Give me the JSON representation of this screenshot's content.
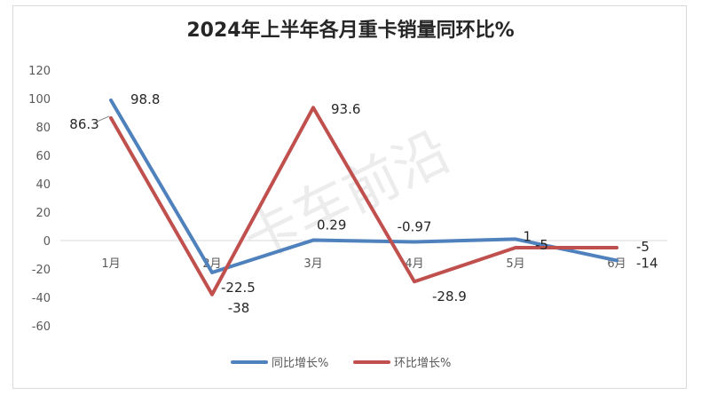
{
  "chart_data": {
    "type": "line",
    "title": "2024年上半年各月重卡销量同环比%",
    "categories": [
      "1月",
      "2月",
      "3月",
      "4月",
      "5月",
      "6月"
    ],
    "ylim": [
      -60,
      120
    ],
    "yticks": [
      -60,
      -40,
      -20,
      0,
      20,
      40,
      60,
      80,
      100,
      120
    ],
    "grid": false,
    "legend_position": "bottom",
    "series": [
      {
        "name": "同比增长%",
        "color": "#4f81bd",
        "values": [
          98.8,
          -22.5,
          0.29,
          -0.97,
          1,
          -14
        ],
        "labels": [
          "98.8",
          "-22.5",
          "0.29",
          "-0.97",
          "1",
          "-14"
        ]
      },
      {
        "name": "环比增长%",
        "color": "#c0504d",
        "values": [
          86.3,
          -38,
          93.6,
          -28.9,
          -5,
          -5
        ],
        "labels": [
          "86.3",
          "-38",
          "93.6",
          "-28.9",
          "-5",
          "-5"
        ]
      }
    ],
    "watermark": "卡车前沿"
  }
}
